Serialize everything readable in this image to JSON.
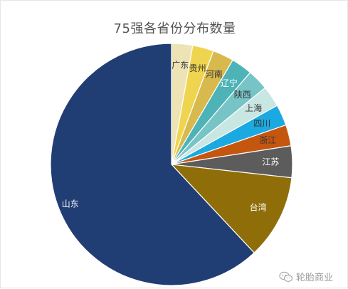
{
  "chart_data": {
    "type": "pie",
    "title": "75强各省份分布数量",
    "start": "top",
    "direction": "clockwise",
    "slices": [
      {
        "label": "广东",
        "value": 2,
        "color": "#ede3b4",
        "label_color": "#333333"
      },
      {
        "label": "贵州",
        "value": 2,
        "color": "#efd54f",
        "label_color": "#333333"
      },
      {
        "label": "河南",
        "value": 2,
        "color": "#d8b94e",
        "label_color": "#333333"
      },
      {
        "label": "辽宁",
        "value": 2,
        "color": "#4db3b7",
        "label_color": "#ffffff"
      },
      {
        "label": "陕西",
        "value": 2,
        "color": "#77c4c7",
        "label_color": "#333333"
      },
      {
        "label": "上海",
        "value": 2,
        "color": "#c8e6e2",
        "label_color": "#333333"
      },
      {
        "label": "四川",
        "value": 2,
        "color": "#1ba9e1",
        "label_color": "#333333"
      },
      {
        "label": "浙江",
        "value": 2,
        "color": "#c5560f",
        "label_color": "#333333"
      },
      {
        "label": "江苏",
        "value": 3,
        "color": "#5c5c5c",
        "label_color": "#ffffff"
      },
      {
        "label": "台湾",
        "value": 8,
        "color": "#8f6e0a",
        "label_color": "#ffffff"
      },
      {
        "label": "山东",
        "value": 44,
        "color": "#213e74",
        "label_color": "#ffffff"
      }
    ]
  },
  "watermark": {
    "text": "轮胎商业",
    "icon": "wechat-icon"
  }
}
